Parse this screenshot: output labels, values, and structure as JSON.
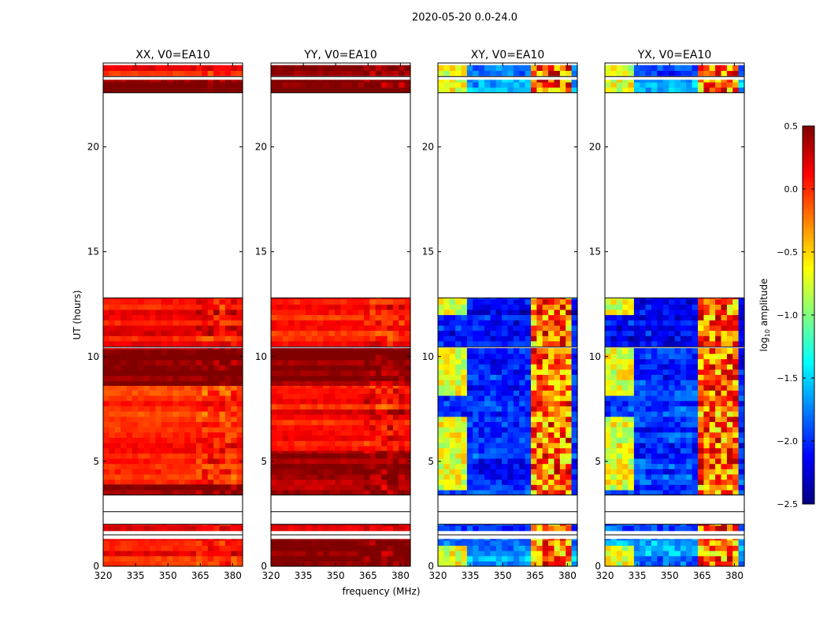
{
  "chart_data": {
    "type": "heatmap",
    "suptitle": "2020-05-20 0.0-24.0",
    "xlabel": "frequency (MHz)",
    "ylabel": "UT (hours)",
    "xlim": [
      320,
      384.6
    ],
    "ylim": [
      0,
      24
    ],
    "xticks": [
      "320",
      "335",
      "350",
      "365",
      "380"
    ],
    "xtick_values": [
      320,
      335,
      350,
      365,
      380
    ],
    "yticks": [
      "0",
      "5",
      "10",
      "15",
      "20"
    ],
    "ytick_values": [
      0,
      5,
      10,
      15,
      20
    ],
    "colorbar": {
      "label": "log10 amplitude",
      "label_main": "log",
      "label_sub": "10",
      "label_rest": " amplitude",
      "range": [
        -2.5,
        0.5
      ],
      "colormap": "jet",
      "ticks": [
        "0.5",
        "0.0",
        "−0.5",
        "−1.0",
        "−1.5",
        "−2.0",
        "−2.5"
      ],
      "tick_values": [
        0.5,
        0.0,
        -0.5,
        -1.0,
        -1.5,
        -2.0,
        -2.5
      ]
    },
    "panels": [
      {
        "title": "XX, V0=EA10",
        "kind": "parallel",
        "bands": [
          [
            23.4,
            23.9,
            0.1
          ],
          [
            22.6,
            23.2,
            0.48
          ],
          [
            10.5,
            12.8,
            0.1
          ],
          [
            8.6,
            10.4,
            0.45
          ],
          [
            3.9,
            8.6,
            0.0
          ],
          [
            3.4,
            3.9,
            0.4
          ],
          [
            1.7,
            2.0,
            0.2
          ],
          [
            0,
            1.3,
            0.05
          ]
        ]
      },
      {
        "title": "YY, V0=EA10",
        "kind": "parallel",
        "bands": [
          [
            23.4,
            23.9,
            0.48
          ],
          [
            22.6,
            23.2,
            0.5
          ],
          [
            10.5,
            12.8,
            0.05
          ],
          [
            8.6,
            10.4,
            0.5
          ],
          [
            5.5,
            8.6,
            0.1
          ],
          [
            3.4,
            5.5,
            0.45
          ],
          [
            1.7,
            2.0,
            0.2
          ],
          [
            0,
            1.3,
            0.5
          ]
        ]
      },
      {
        "title": "XY, V0=EA10",
        "kind": "cross",
        "bands": [
          [
            23.4,
            23.9,
            -1.9
          ],
          [
            22.6,
            23.2,
            -1.6
          ],
          [
            10.5,
            12.8,
            -2.1
          ],
          [
            3.4,
            10.4,
            -2.0
          ],
          [
            1.7,
            2.0,
            -1.9
          ],
          [
            0,
            1.3,
            -1.7
          ]
        ]
      },
      {
        "title": "YX, V0=EA10",
        "kind": "cross",
        "bands": [
          [
            23.4,
            23.9,
            -1.9
          ],
          [
            22.6,
            23.2,
            -1.6
          ],
          [
            10.5,
            12.8,
            -2.1
          ],
          [
            3.4,
            10.4,
            -2.0
          ],
          [
            1.7,
            2.0,
            -1.9
          ],
          [
            0,
            1.3,
            -1.7
          ]
        ]
      }
    ],
    "rfi_region_mhz": [
      361,
      380
    ],
    "rfi_level": -0.2,
    "lowfreq_edge_mhz": [
      320,
      331
    ],
    "lowfreq_edge_level": -1.0
  }
}
